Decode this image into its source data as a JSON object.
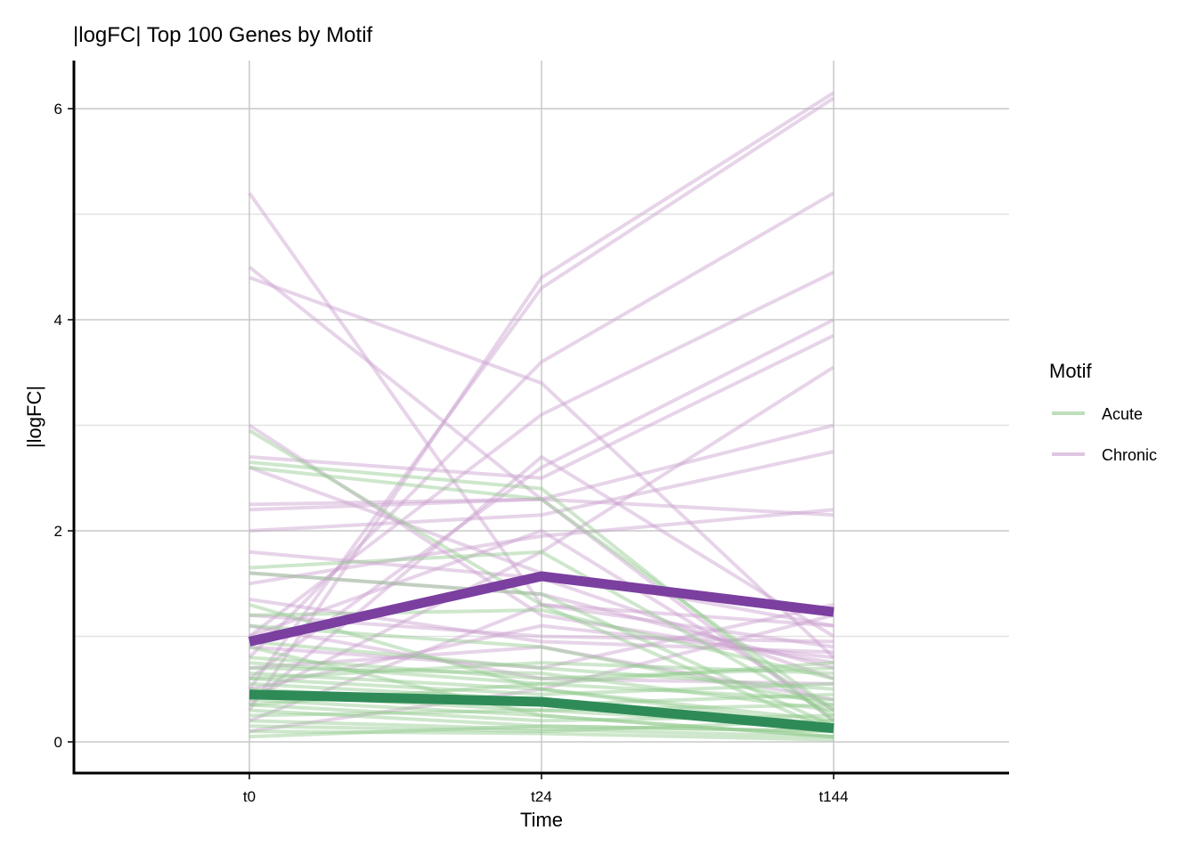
{
  "chart_data": {
    "type": "line",
    "title": "|logFC| Top 100 Genes by Motif",
    "xlabel": "Time",
    "ylabel": "|logFC|",
    "categories": [
      "t0",
      "t24",
      "t144"
    ],
    "ylim": [
      -0.3,
      6.45
    ],
    "yticks": [
      0,
      2,
      4,
      6
    ],
    "y_minor_gridlines": [
      1,
      3,
      5
    ],
    "grid": true,
    "legend": {
      "title": "Motif",
      "position": "right",
      "entries": [
        {
          "label": "Acute",
          "color": "#93c98f"
        },
        {
          "label": "Chronic",
          "color": "#c9a0cf"
        }
      ]
    },
    "colors": {
      "acute_gene": "#93c98f",
      "chronic_gene": "#c9a0cf",
      "acute_mean": "#2e8b57",
      "chronic_mean": "#7b3fa0",
      "grid_major": "#c8c8c8",
      "grid_minor": "#e3e3e3",
      "axis": "#000000"
    },
    "series": [
      {
        "group": "Chronic",
        "role": "mean",
        "values": [
          0.95,
          1.57,
          1.23
        ]
      },
      {
        "group": "Acute",
        "role": "mean",
        "values": [
          0.45,
          0.38,
          0.13
        ]
      },
      {
        "group": "Chronic",
        "values": [
          5.2,
          1.3,
          0.9
        ]
      },
      {
        "group": "Chronic",
        "values": [
          4.5,
          2.3,
          0.2
        ]
      },
      {
        "group": "Chronic",
        "values": [
          4.4,
          3.4,
          0.8
        ]
      },
      {
        "group": "Chronic",
        "values": [
          0.3,
          4.4,
          6.15
        ]
      },
      {
        "group": "Chronic",
        "values": [
          0.5,
          4.3,
          6.1
        ]
      },
      {
        "group": "Chronic",
        "values": [
          0.8,
          3.6,
          5.2
        ]
      },
      {
        "group": "Chronic",
        "values": [
          1.0,
          3.1,
          4.45
        ]
      },
      {
        "group": "Chronic",
        "values": [
          0.6,
          2.6,
          4.0
        ]
      },
      {
        "group": "Chronic",
        "values": [
          2.7,
          2.5,
          3.85
        ]
      },
      {
        "group": "Chronic",
        "values": [
          0.4,
          1.8,
          3.55
        ]
      },
      {
        "group": "Chronic",
        "values": [
          2.2,
          2.3,
          3.0
        ]
      },
      {
        "group": "Chronic",
        "values": [
          2.0,
          2.15,
          2.75
        ]
      },
      {
        "group": "Chronic",
        "values": [
          2.25,
          2.3,
          2.15
        ]
      },
      {
        "group": "Chronic",
        "values": [
          1.5,
          1.95,
          2.2
        ]
      },
      {
        "group": "Chronic",
        "values": [
          2.6,
          1.6,
          1.1
        ]
      },
      {
        "group": "Chronic",
        "values": [
          1.6,
          1.4,
          0.7
        ]
      },
      {
        "group": "Chronic",
        "values": [
          1.2,
          1.0,
          0.95
        ]
      },
      {
        "group": "Chronic",
        "values": [
          1.8,
          1.55,
          0.6
        ]
      },
      {
        "group": "Chronic",
        "values": [
          0.2,
          1.3,
          1.1
        ]
      },
      {
        "group": "Chronic",
        "values": [
          0.9,
          0.7,
          1.3
        ]
      },
      {
        "group": "Chronic",
        "values": [
          1.35,
          0.95,
          0.85
        ]
      },
      {
        "group": "Chronic",
        "values": [
          0.1,
          0.5,
          1.2
        ]
      },
      {
        "group": "Chronic",
        "values": [
          0.7,
          0.9,
          0.4
        ]
      },
      {
        "group": "Chronic",
        "values": [
          1.0,
          2.0,
          0.3
        ]
      },
      {
        "group": "Chronic",
        "values": [
          3.0,
          1.2,
          0.75
        ]
      },
      {
        "group": "Chronic",
        "values": [
          0.35,
          2.7,
          1.0
        ]
      },
      {
        "group": "Chronic",
        "values": [
          1.1,
          0.6,
          0.55
        ]
      },
      {
        "group": "Chronic",
        "values": [
          0.5,
          1.1,
          0.8
        ]
      },
      {
        "group": "Acute",
        "values": [
          2.95,
          1.3,
          0.1
        ]
      },
      {
        "group": "Acute",
        "values": [
          2.65,
          2.4,
          0.2
        ]
      },
      {
        "group": "Acute",
        "values": [
          2.6,
          2.3,
          0.3
        ]
      },
      {
        "group": "Acute",
        "values": [
          1.65,
          1.8,
          0.25
        ]
      },
      {
        "group": "Acute",
        "values": [
          1.6,
          1.4,
          0.15
        ]
      },
      {
        "group": "Acute",
        "values": [
          1.2,
          1.25,
          0.6
        ]
      },
      {
        "group": "Acute",
        "values": [
          1.1,
          0.9,
          0.35
        ]
      },
      {
        "group": "Acute",
        "values": [
          0.95,
          0.7,
          0.5
        ]
      },
      {
        "group": "Acute",
        "values": [
          0.8,
          0.6,
          0.7
        ]
      },
      {
        "group": "Acute",
        "values": [
          0.75,
          0.55,
          0.4
        ]
      },
      {
        "group": "Acute",
        "values": [
          0.7,
          0.65,
          0.3
        ]
      },
      {
        "group": "Acute",
        "values": [
          0.65,
          0.5,
          0.2
        ]
      },
      {
        "group": "Acute",
        "values": [
          0.6,
          0.45,
          0.55
        ]
      },
      {
        "group": "Acute",
        "values": [
          0.55,
          0.4,
          0.1
        ]
      },
      {
        "group": "Acute",
        "values": [
          0.5,
          0.35,
          0.45
        ]
      },
      {
        "group": "Acute",
        "values": [
          0.45,
          0.3,
          0.15
        ]
      },
      {
        "group": "Acute",
        "values": [
          0.4,
          0.25,
          0.05
        ]
      },
      {
        "group": "Acute",
        "values": [
          0.35,
          0.2,
          0.25
        ]
      },
      {
        "group": "Acute",
        "values": [
          0.3,
          0.15,
          0.1
        ]
      },
      {
        "group": "Acute",
        "values": [
          0.25,
          0.3,
          0.35
        ]
      },
      {
        "group": "Acute",
        "values": [
          0.2,
          0.12,
          0.05
        ]
      },
      {
        "group": "Acute",
        "values": [
          0.15,
          0.1,
          0.2
        ]
      },
      {
        "group": "Acute",
        "values": [
          0.1,
          0.08,
          0.02
        ]
      },
      {
        "group": "Acute",
        "values": [
          0.05,
          0.15,
          0.1
        ]
      },
      {
        "group": "Acute",
        "values": [
          0.9,
          0.25,
          0.05
        ]
      },
      {
        "group": "Acute",
        "values": [
          1.3,
          0.5,
          0.15
        ]
      },
      {
        "group": "Acute",
        "values": [
          0.6,
          0.75,
          0.65
        ]
      },
      {
        "group": "Acute",
        "values": [
          0.35,
          0.55,
          0.75
        ]
      }
    ]
  }
}
